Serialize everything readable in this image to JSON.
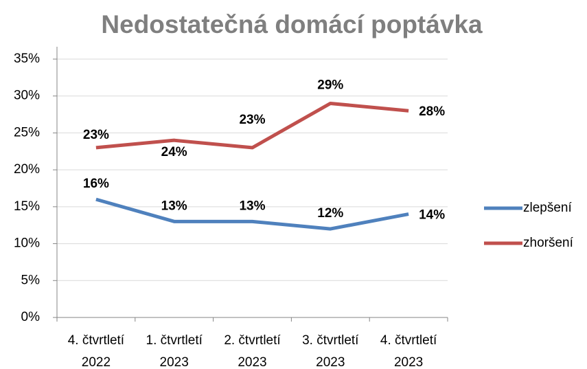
{
  "chart_data": {
    "type": "line",
    "title": "Nedostatečná domácí poptávka",
    "categories": [
      "4. čtvrtletí 2022",
      "1. čtvrtletí 2023",
      "2. čtvrtletí 2023",
      "3. čtvrtletí 2023",
      "4. čtvrtletí 2023"
    ],
    "series": [
      {
        "name": "zlepšení",
        "color": "#4f81bd",
        "label_color": "#1f497d",
        "values": [
          16,
          13,
          13,
          12,
          14
        ],
        "value_labels": [
          "16%",
          "13%",
          "13%",
          "12%",
          "14%"
        ]
      },
      {
        "name": "zhoršení",
        "color": "#c0504d",
        "label_color": "#c00000",
        "values": [
          23,
          24,
          23,
          29,
          28
        ],
        "value_labels": [
          "23%",
          "24%",
          "23%",
          "29%",
          "28%"
        ]
      }
    ],
    "ylim": [
      0,
      35
    ],
    "yticks": [
      {
        "value": 0,
        "label": "0%"
      },
      {
        "value": 5,
        "label": "5%"
      },
      {
        "value": 10,
        "label": "10%"
      },
      {
        "value": 15,
        "label": "15%"
      },
      {
        "value": 20,
        "label": "20%"
      },
      {
        "value": 25,
        "label": "25%"
      },
      {
        "value": 30,
        "label": "30%"
      },
      {
        "value": 35,
        "label": "35%"
      }
    ],
    "grid": true,
    "legend": "right"
  }
}
